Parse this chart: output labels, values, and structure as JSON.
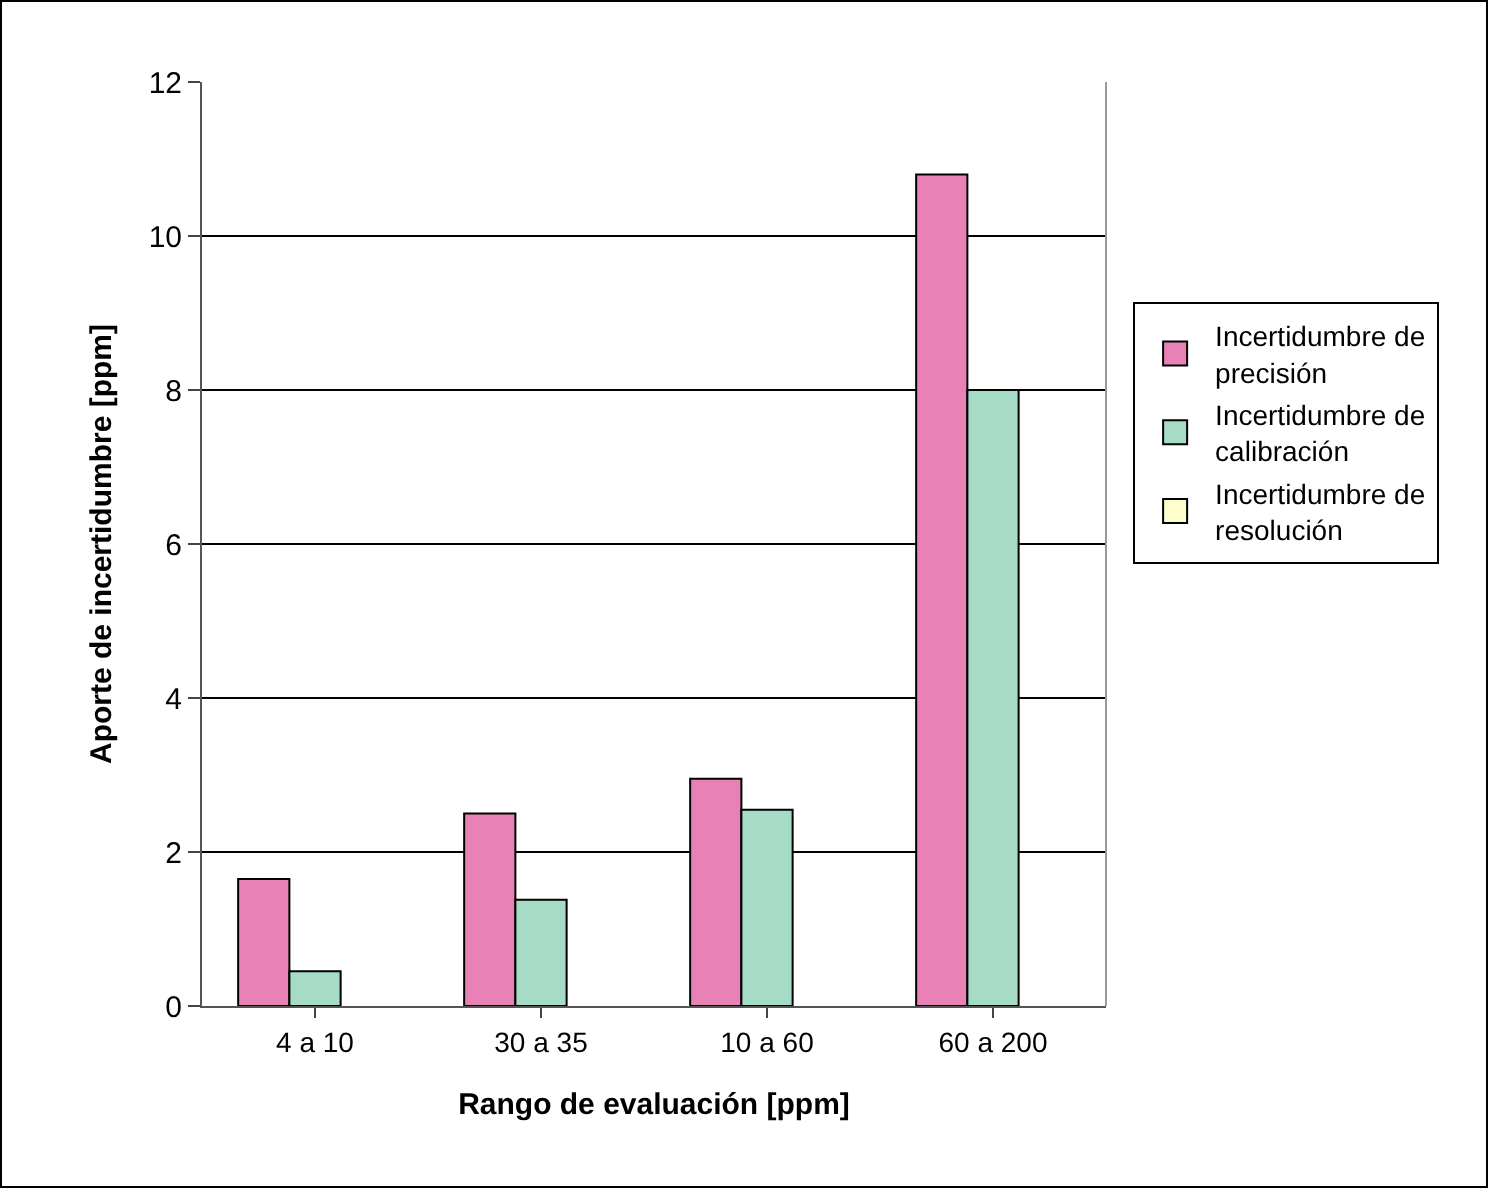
{
  "chart_data": {
    "type": "bar",
    "xlabel": "Rango de evaluación [ppm]",
    "ylabel": "Aporte de incertidumbre [ppm]",
    "categories": [
      "4 a 10",
      "30 a 35",
      "10 a 60",
      "60 a 200"
    ],
    "series": [
      {
        "name": "Incertidumbre de precisión",
        "color": "#e882b6",
        "values": [
          1.65,
          2.5,
          2.95,
          10.8
        ]
      },
      {
        "name": "Incertidumbre de calibración",
        "color": "#a6dcc6",
        "values": [
          0.45,
          1.38,
          2.55,
          8.0
        ]
      },
      {
        "name": "Incertidumbre de resolución",
        "color": "#ffffcc",
        "values": [
          null,
          null,
          null,
          null
        ]
      }
    ],
    "ylim": [
      0,
      12
    ],
    "yticks": [
      0,
      2,
      4,
      6,
      8,
      10,
      12
    ],
    "grid": "y",
    "legend": "right"
  }
}
